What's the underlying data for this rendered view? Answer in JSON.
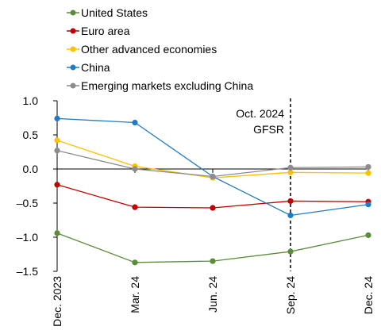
{
  "chart_data": {
    "type": "line",
    "categories": [
      "Dec. 2023",
      "Mar. 24",
      "Jun. 24",
      "Sep. 24",
      "Dec. 24"
    ],
    "series": [
      {
        "name": "United States",
        "color": "#5b8c3a",
        "values": [
          -0.94,
          -1.37,
          -1.35,
          -1.21,
          -0.97
        ]
      },
      {
        "name": "Euro area",
        "color": "#c00000",
        "values": [
          -0.23,
          -0.56,
          -0.57,
          -0.47,
          -0.48
        ]
      },
      {
        "name": "Other advanced economies",
        "color": "#ffc000",
        "values": [
          0.42,
          0.04,
          -0.13,
          -0.05,
          -0.06
        ]
      },
      {
        "name": "China",
        "color": "#1f7cc4",
        "values": [
          0.74,
          0.68,
          -0.11,
          -0.68,
          -0.52
        ]
      },
      {
        "name": "Emerging markets excluding China",
        "color": "#8c8c8c",
        "values": [
          0.27,
          0.0,
          -0.11,
          0.02,
          0.03
        ]
      }
    ],
    "ylim": [
      -1.5,
      1.0
    ],
    "yticks": [
      "1.0",
      "0.5",
      "0.0",
      "–0.5",
      "–1.0",
      "–1.5"
    ],
    "ytick_values": [
      1.0,
      0.5,
      0.0,
      -0.5,
      -1.0,
      -1.5
    ],
    "xlabel": "",
    "ylabel": "",
    "legend_position": "top-left",
    "grid": false,
    "annotation": {
      "line1": "Oct. 2024",
      "line2": "GFSR",
      "at_category": "Sep. 24"
    }
  }
}
